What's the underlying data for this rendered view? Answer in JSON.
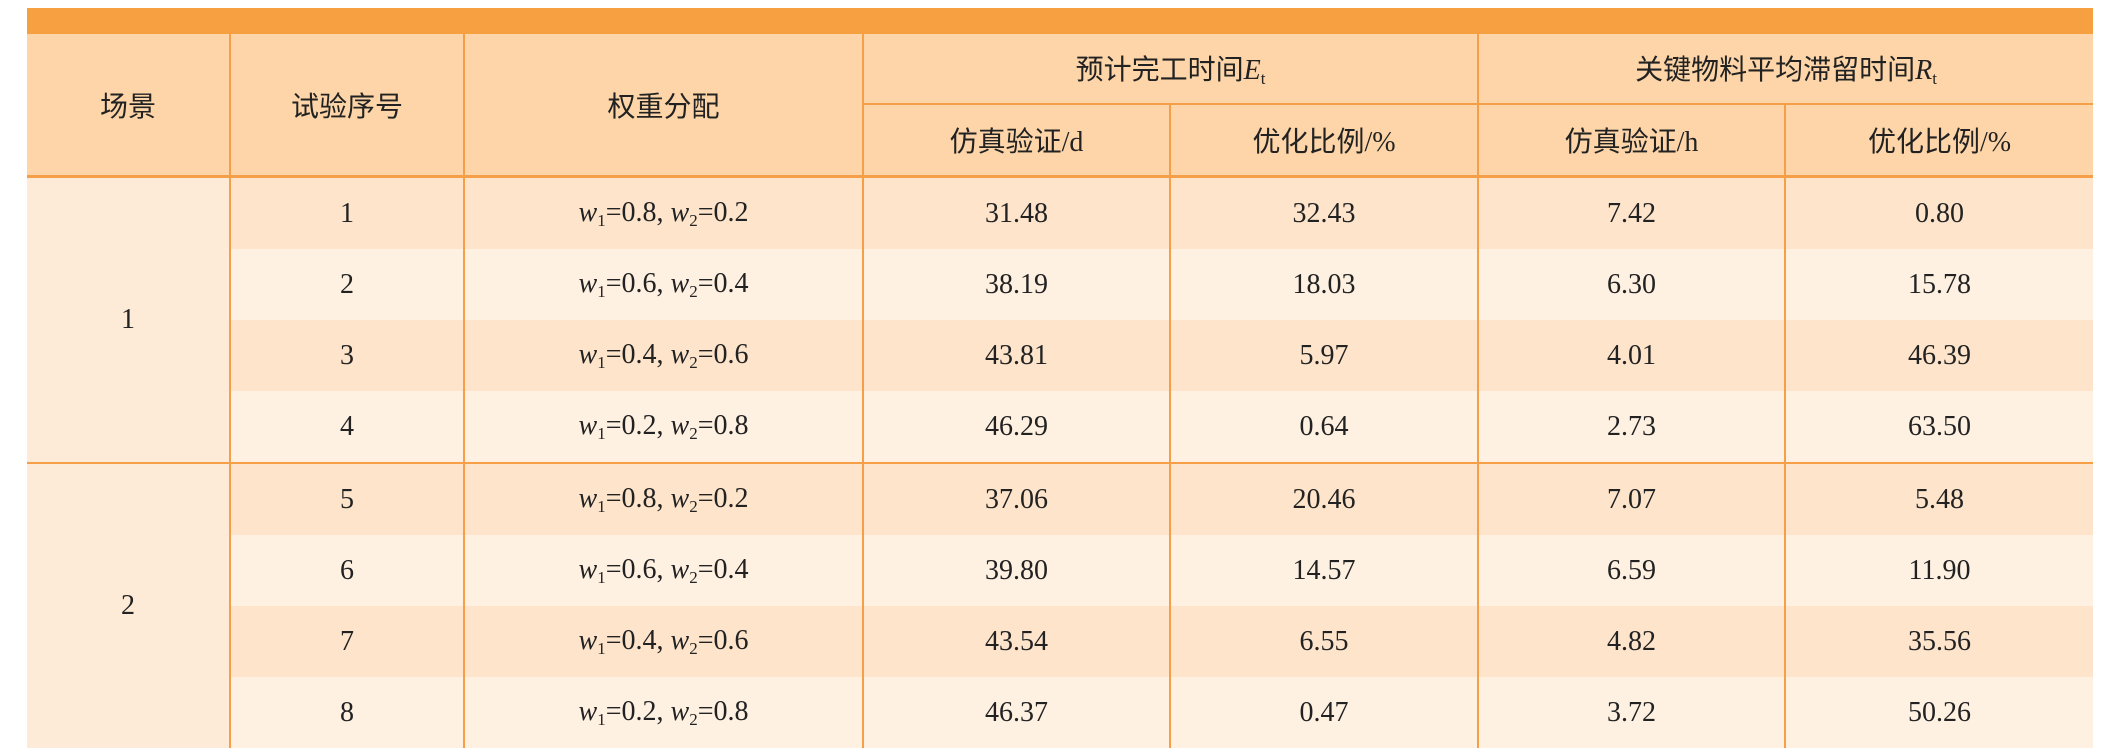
{
  "table": {
    "headers": {
      "scenario": "场景",
      "trial": "试验序号",
      "weights": "权重分配",
      "groups": [
        {
          "label": "预计完工时间",
          "symbol": "E",
          "subscript": "t",
          "sub_headers": [
            "仿真验证/d",
            "优化比例/%"
          ]
        },
        {
          "label": "关键物料平均滞留时间",
          "symbol": "R",
          "subscript": "t",
          "sub_headers": [
            "仿真验证/h",
            "优化比例/%"
          ]
        }
      ]
    },
    "weight_notation": {
      "symbol": "w",
      "index_1": "1",
      "index_2": "2",
      "equals": "=",
      "separator": ", "
    },
    "scenarios": [
      {
        "label": "1",
        "rows": [
          {
            "trial": "1",
            "w1": "0.8",
            "w2": "0.2",
            "values": [
              "31.48",
              "32.43",
              "7.42",
              "0.80"
            ]
          },
          {
            "trial": "2",
            "w1": "0.6",
            "w2": "0.4",
            "values": [
              "38.19",
              "18.03",
              "6.30",
              "15.78"
            ]
          },
          {
            "trial": "3",
            "w1": "0.4",
            "w2": "0.6",
            "values": [
              "43.81",
              "5.97",
              "4.01",
              "46.39"
            ]
          },
          {
            "trial": "4",
            "w1": "0.2",
            "w2": "0.8",
            "values": [
              "46.29",
              "0.64",
              "2.73",
              "63.50"
            ]
          }
        ]
      },
      {
        "label": "2",
        "rows": [
          {
            "trial": "5",
            "w1": "0.8",
            "w2": "0.2",
            "values": [
              "37.06",
              "20.46",
              "7.07",
              "5.48"
            ]
          },
          {
            "trial": "6",
            "w1": "0.6",
            "w2": "0.4",
            "values": [
              "39.80",
              "14.57",
              "6.59",
              "11.90"
            ]
          },
          {
            "trial": "7",
            "w1": "0.4",
            "w2": "0.6",
            "values": [
              "43.54",
              "6.55",
              "4.82",
              "35.56"
            ]
          },
          {
            "trial": "8",
            "w1": "0.2",
            "w2": "0.8",
            "values": [
              "46.37",
              "0.47",
              "3.72",
              "50.26"
            ]
          }
        ]
      }
    ]
  }
}
